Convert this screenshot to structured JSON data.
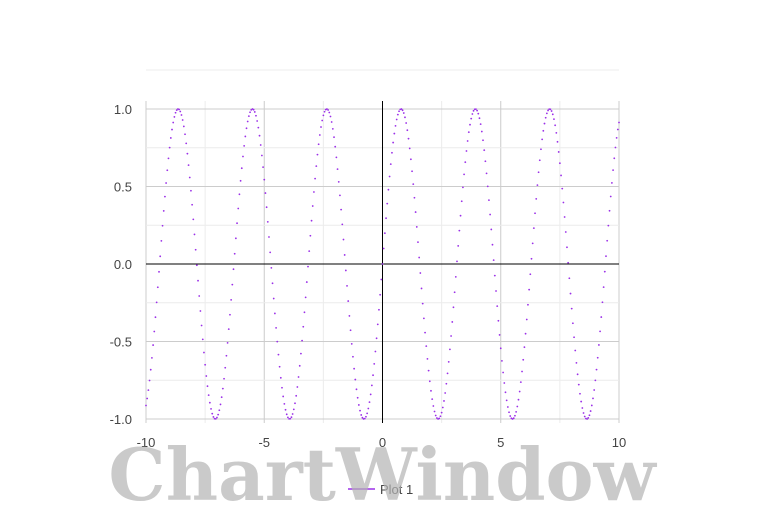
{
  "watermark": "ChartWindow",
  "chart_data": {
    "type": "scatter",
    "title": "",
    "xlabel": "",
    "ylabel": "",
    "xlim": [
      -10,
      10
    ],
    "ylim": [
      -1,
      1
    ],
    "x_ticks": [
      -10,
      -5,
      0,
      5,
      10
    ],
    "x_tick_labels": [
      "-10",
      "-5",
      "0",
      "5",
      "10"
    ],
    "y_ticks": [
      -1,
      -0.5,
      0,
      0.5,
      1
    ],
    "y_tick_labels": [
      "-1.0",
      "-0.5",
      "0.0",
      "0.5",
      "1.0"
    ],
    "grid": true,
    "legend_position": "bottom-center",
    "series": [
      {
        "name": "Plot 1",
        "color": "#9b30e8",
        "function": "sin(2x)",
        "x_start": -10,
        "x_end": 10,
        "x_step": 0.05
      }
    ]
  }
}
